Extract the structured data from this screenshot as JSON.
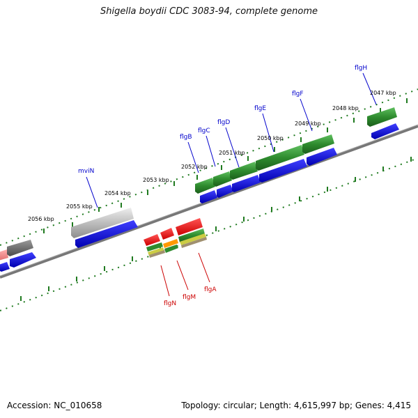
{
  "title": "Shigella boydii CDC 3083-94, complete genome",
  "footer": {
    "accession": "Accession: NC_010658",
    "summary": "Topology: circular; Length: 4,615,997 bp; Genes: 4,415"
  },
  "colors": {
    "backbone": "#777777",
    "ticks": "#1f7a1f",
    "cds_forward": "#0000ee",
    "flagellar": "#2e8b2e",
    "gray_gene": "#bbbbbb",
    "red_gene": "#ee0000",
    "blue_label": "#0000cc",
    "red_label": "#cc0000"
  },
  "ruler": {
    "unit": "kbp",
    "labels": [
      "2056 kbp",
      "2055 kbp",
      "2054 kbp",
      "2053 kbp",
      "2052 kbp",
      "2051 kbp",
      "2050 kbp",
      "2049 kbp",
      "2048 kbp",
      "2047 kbp"
    ]
  },
  "genes_top": [
    {
      "name": "mviN",
      "color": "gray"
    },
    {
      "name": "flgB",
      "color": "green"
    },
    {
      "name": "flgC",
      "color": "green"
    },
    {
      "name": "flgD",
      "color": "green"
    },
    {
      "name": "flgE",
      "color": "green"
    },
    {
      "name": "flgF",
      "color": "green"
    },
    {
      "name": "flgH",
      "color": "green"
    }
  ],
  "genes_bottom": [
    {
      "name": "flgN",
      "color": "red"
    },
    {
      "name": "flgM",
      "color": "red"
    },
    {
      "name": "flgA",
      "color": "red"
    }
  ]
}
